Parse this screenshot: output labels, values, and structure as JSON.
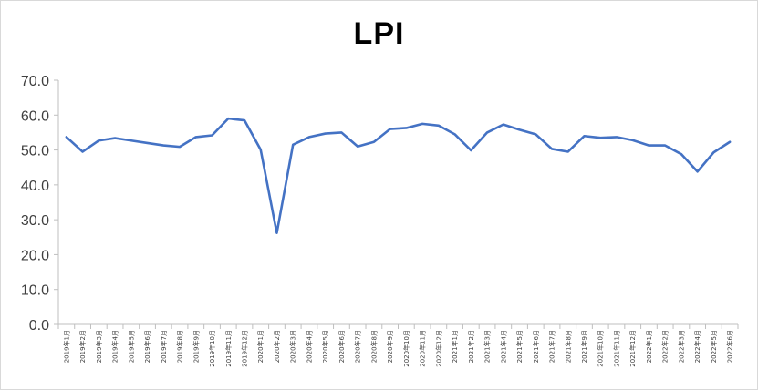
{
  "chart_data": {
    "type": "line",
    "title": "LPI",
    "xlabel": "",
    "ylabel": "",
    "ylim": [
      0,
      70
    ],
    "yticks": [
      0,
      10,
      20,
      30,
      40,
      50,
      60,
      70
    ],
    "ytick_labels": [
      "0.0",
      "10.0",
      "20.0",
      "30.0",
      "40.0",
      "50.0",
      "60.0",
      "70.0"
    ],
    "grid": false,
    "legend": "none",
    "line_color": "#4472C4",
    "categories": [
      "2019年1月",
      "2019年2月",
      "2019年3月",
      "2019年4月",
      "2019年5月",
      "2019年6月",
      "2019年7月",
      "2019年8月",
      "2019年9月",
      "2019年10月",
      "2019年11月",
      "2019年12月",
      "2020年1月",
      "2020年2月",
      "2020年3月",
      "2020年4月",
      "2020年5月",
      "2020年6月",
      "2020年7月",
      "2020年8月",
      "2020年9月",
      "2020年10月",
      "2020年11月",
      "2020年12月",
      "2021年1月",
      "2021年2月",
      "2021年3月",
      "2021年4月",
      "2021年5月",
      "2021年6月",
      "2021年7月",
      "2021年8月",
      "2021年9月",
      "2021年10月",
      "2021年11月",
      "2021年12月",
      "2022年1月",
      "2022年2月",
      "2022年3月",
      "2022年4月",
      "2022年5月",
      "2022年6月"
    ],
    "series": [
      {
        "values": [
          53.7,
          49.5,
          52.7,
          53.4,
          52.7,
          52.0,
          51.3,
          50.9,
          53.7,
          54.2,
          59.0,
          58.5,
          50.1,
          26.2,
          51.5,
          53.7,
          54.7,
          55.0,
          51.0,
          52.3,
          56.0,
          56.3,
          57.5,
          57.0,
          54.5,
          49.9,
          55.0,
          57.3,
          55.8,
          54.5,
          50.3,
          49.5,
          54.0,
          53.5,
          53.7,
          52.8,
          51.3,
          51.3,
          48.8,
          43.8,
          49.3,
          52.3
        ]
      }
    ]
  }
}
